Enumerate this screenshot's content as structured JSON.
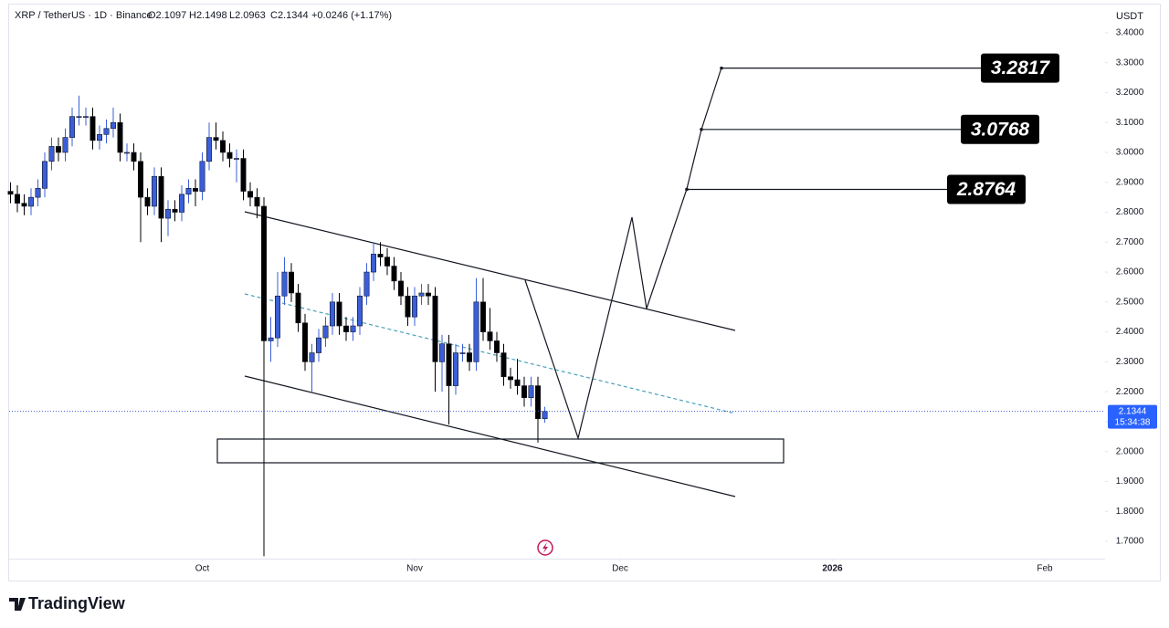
{
  "chart_data": {
    "type": "candlestick",
    "header": {
      "symbol": "XRP / TetherUS · 1D · Binance",
      "open": "O2.1097",
      "high": "H2.1498",
      "low": "L2.0963",
      "close": "C2.1344",
      "change": "+0.0246 (+1.17%)"
    },
    "currency": "USDT",
    "last_price": 2.1344,
    "countdown": "15:34:38",
    "targets": [
      3.2817,
      3.0768,
      2.8764
    ],
    "brand": "TradingView",
    "up_color": "#3b5fd9",
    "down_color": "#000000",
    "grid": false,
    "xlim": [
      -27.2,
      132.8
    ],
    "xticks": [
      {
        "value": 1,
        "label": "Oct"
      },
      {
        "value": 32,
        "label": "Nov"
      },
      {
        "value": 62,
        "label": "Dec"
      },
      {
        "value": 93,
        "label": "2026"
      },
      {
        "value": 124,
        "label": "Feb"
      }
    ],
    "ylim": [
      1.642,
      3.479
    ],
    "yticks": [
      {
        "value": 3.4,
        "label": "3.4000"
      },
      {
        "value": 3.3,
        "label": "3.3000"
      },
      {
        "value": 3.2,
        "label": "3.2000"
      },
      {
        "value": 3.1,
        "label": "3.1000"
      },
      {
        "value": 3.0,
        "label": "3.0000"
      },
      {
        "value": 2.9,
        "label": "2.9000"
      },
      {
        "value": 2.8,
        "label": "2.8000"
      },
      {
        "value": 2.7,
        "label": "2.7000"
      },
      {
        "value": 2.6,
        "label": "2.6000"
      },
      {
        "value": 2.5,
        "label": "2.5000"
      },
      {
        "value": 2.4,
        "label": "2.4000"
      },
      {
        "value": 2.3,
        "label": "2.3000"
      },
      {
        "value": 2.2,
        "label": "2.2000"
      },
      {
        "value": 2.1,
        "label": "2.1000"
      },
      {
        "value": 2.0,
        "label": "2.0000"
      },
      {
        "value": 1.9,
        "label": "1.9000"
      },
      {
        "value": 1.8,
        "label": "1.8000"
      },
      {
        "value": 1.7,
        "label": "1.7000"
      }
    ],
    "x": [
      -27,
      -26,
      -25,
      -24,
      -23,
      -22,
      -21,
      -20,
      -19,
      -18,
      -17,
      -16,
      -15,
      -14,
      -13,
      -12,
      -11,
      -10,
      -9,
      -8,
      -7,
      -6,
      -5,
      -4,
      -3,
      -2,
      -1,
      0,
      1,
      2,
      3,
      4,
      5,
      6,
      7,
      8,
      9,
      10,
      11,
      12,
      13,
      14,
      15,
      16,
      17,
      18,
      19,
      20,
      21,
      22,
      23,
      24,
      25,
      26,
      27,
      28,
      29,
      30,
      31,
      32,
      33,
      34,
      35,
      36,
      37,
      38,
      39,
      40,
      41,
      42,
      43,
      44,
      45,
      46,
      47,
      48,
      49,
      50,
      51
    ],
    "open": [
      2.87,
      2.86,
      2.83,
      2.82,
      2.85,
      2.88,
      2.97,
      3.02,
      3.0,
      3.05,
      3.12,
      3.12,
      3.12,
      3.04,
      3.06,
      3.08,
      3.1,
      3.0,
      3.0,
      2.97,
      2.85,
      2.82,
      2.92,
      2.78,
      2.81,
      2.8,
      2.86,
      2.88,
      2.87,
      2.97,
      3.05,
      3.04,
      3.0,
      2.98,
      2.98,
      2.87,
      2.85,
      2.82,
      2.37,
      2.38,
      2.52,
      2.6,
      2.53,
      2.43,
      2.3,
      2.33,
      2.38,
      2.42,
      2.5,
      2.42,
      2.4,
      2.42,
      2.52,
      2.6,
      2.66,
      2.65,
      2.62,
      2.57,
      2.52,
      2.45,
      2.52,
      2.53,
      2.52,
      2.3,
      2.36,
      2.22,
      2.33,
      2.33,
      2.3,
      2.5,
      2.4,
      2.37,
      2.33,
      2.25,
      2.24,
      2.22,
      2.18,
      2.22,
      2.1097
    ],
    "high": [
      2.9,
      2.89,
      2.86,
      2.88,
      2.91,
      3.0,
      3.05,
      3.05,
      3.08,
      3.15,
      3.19,
      3.15,
      3.15,
      3.09,
      3.11,
      3.15,
      3.13,
      3.03,
      3.03,
      3.0,
      2.88,
      2.95,
      2.95,
      2.84,
      2.84,
      2.89,
      2.91,
      2.91,
      3.0,
      3.1,
      3.1,
      3.07,
      3.03,
      3.01,
      3.01,
      2.9,
      2.88,
      2.85,
      2.45,
      2.6,
      2.65,
      2.63,
      2.56,
      2.46,
      2.36,
      2.41,
      2.45,
      2.53,
      2.53,
      2.45,
      2.45,
      2.55,
      2.63,
      2.7,
      2.7,
      2.68,
      2.65,
      2.6,
      2.55,
      2.55,
      2.56,
      2.56,
      2.55,
      2.39,
      2.39,
      2.36,
      2.36,
      2.36,
      2.58,
      2.58,
      2.48,
      2.4,
      2.36,
      2.28,
      2.31,
      2.25,
      2.25,
      2.25,
      2.1498
    ],
    "low": [
      2.83,
      2.8,
      2.79,
      2.79,
      2.82,
      2.85,
      2.94,
      2.97,
      2.97,
      3.02,
      3.09,
      3.09,
      3.01,
      3.01,
      3.03,
      3.05,
      2.97,
      2.97,
      2.94,
      2.7,
      2.79,
      2.79,
      2.7,
      2.72,
      2.77,
      2.77,
      2.83,
      2.82,
      2.84,
      2.94,
      3.01,
      2.97,
      2.95,
      2.9,
      2.84,
      2.82,
      2.78,
      1.65,
      2.3,
      2.35,
      2.49,
      2.5,
      2.4,
      2.27,
      2.2,
      2.3,
      2.35,
      2.39,
      2.39,
      2.37,
      2.37,
      2.39,
      2.49,
      2.57,
      2.62,
      2.59,
      2.54,
      2.49,
      2.42,
      2.42,
      2.49,
      2.49,
      2.2,
      2.2,
      2.09,
      2.19,
      2.3,
      2.27,
      2.27,
      2.37,
      2.34,
      2.3,
      2.22,
      2.21,
      2.19,
      2.15,
      2.15,
      2.03,
      2.0963
    ],
    "close": [
      2.86,
      2.83,
      2.82,
      2.85,
      2.88,
      2.97,
      3.02,
      3.0,
      3.05,
      3.12,
      3.12,
      3.12,
      3.04,
      3.06,
      3.08,
      3.1,
      3.0,
      3.0,
      2.97,
      2.85,
      2.82,
      2.92,
      2.78,
      2.81,
      2.8,
      2.86,
      2.88,
      2.87,
      2.97,
      3.05,
      3.04,
      3.0,
      2.98,
      2.98,
      2.87,
      2.85,
      2.82,
      2.37,
      2.38,
      2.52,
      2.6,
      2.53,
      2.43,
      2.3,
      2.33,
      2.38,
      2.42,
      2.5,
      2.42,
      2.4,
      2.42,
      2.52,
      2.6,
      2.66,
      2.65,
      2.62,
      2.57,
      2.52,
      2.45,
      2.52,
      2.53,
      2.52,
      2.3,
      2.36,
      2.22,
      2.33,
      2.33,
      2.3,
      2.5,
      2.4,
      2.37,
      2.33,
      2.25,
      2.24,
      2.22,
      2.18,
      2.22,
      2.1097,
      2.1344
    ]
  }
}
